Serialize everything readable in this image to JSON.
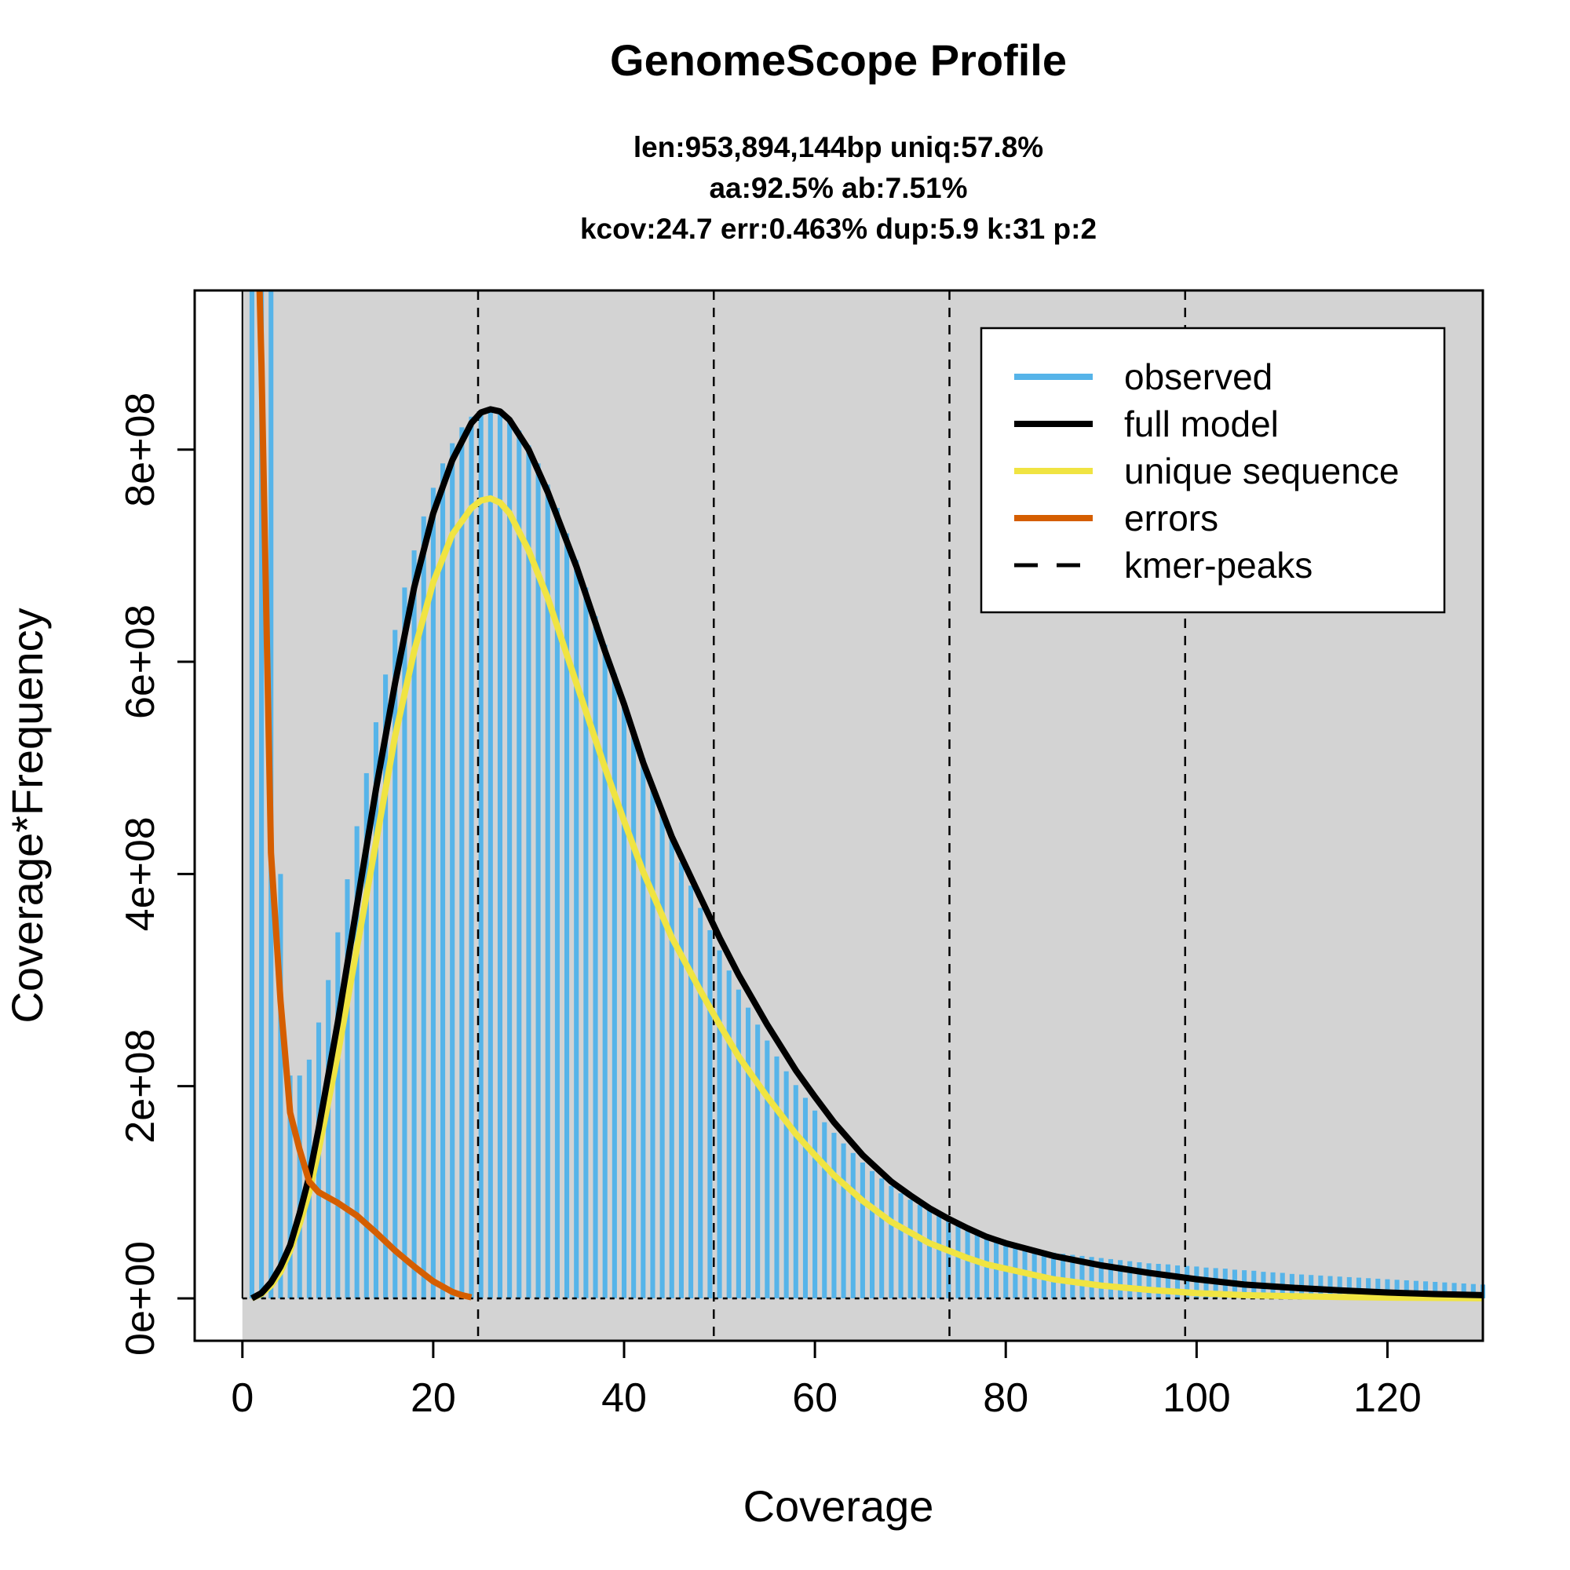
{
  "chart_data": {
    "type": "bar",
    "title": "GenomeScope Profile",
    "subtitle_lines": [
      "len:953,894,144bp uniq:57.8%",
      "aa:92.5% ab:7.51%",
      "kcov:24.7 err:0.463%  dup:5.9  k:31 p:2"
    ],
    "xlabel": "Coverage",
    "ylabel": "Coverage*Frequency",
    "xlim": [
      -5,
      130
    ],
    "ylim": [
      -40000000,
      950000000
    ],
    "x_ticks": [
      0,
      20,
      40,
      60,
      80,
      100,
      120
    ],
    "y_ticks": [
      0,
      200000000,
      400000000,
      600000000,
      800000000
    ],
    "y_tick_labels": [
      "0e+00",
      "2e+08",
      "4e+08",
      "6e+08",
      "8e+08"
    ],
    "kmer_peaks": [
      24.7,
      49.4,
      74.1,
      98.8
    ],
    "observed": [
      [
        1,
        950000000
      ],
      [
        2,
        950000000
      ],
      [
        3,
        950000000
      ],
      [
        4,
        400000000
      ],
      [
        5,
        210000000
      ],
      [
        6,
        210000000
      ],
      [
        7,
        225000000
      ],
      [
        8,
        260000000
      ],
      [
        9,
        300000000
      ],
      [
        10,
        345000000
      ],
      [
        11,
        395000000
      ],
      [
        12,
        445000000
      ],
      [
        13,
        495000000
      ],
      [
        14,
        543000000
      ],
      [
        15,
        588000000
      ],
      [
        16,
        630000000
      ],
      [
        17,
        670000000
      ],
      [
        18,
        705000000
      ],
      [
        19,
        737000000
      ],
      [
        20,
        764000000
      ],
      [
        21,
        787000000
      ],
      [
        22,
        806000000
      ],
      [
        23,
        821000000
      ],
      [
        24,
        831000000
      ],
      [
        25,
        836000000
      ],
      [
        26,
        838000000
      ],
      [
        27,
        835000000
      ],
      [
        28,
        828000000
      ],
      [
        29,
        818000000
      ],
      [
        30,
        804000000
      ],
      [
        31,
        787000000
      ],
      [
        32,
        767000000
      ],
      [
        33,
        745000000
      ],
      [
        34,
        721000000
      ],
      [
        35,
        696000000
      ],
      [
        36,
        670000000
      ],
      [
        37,
        643000000
      ],
      [
        38,
        616000000
      ],
      [
        39,
        589000000
      ],
      [
        40,
        562000000
      ],
      [
        41,
        535000000
      ],
      [
        42,
        509000000
      ],
      [
        43,
        483000000
      ],
      [
        44,
        458000000
      ],
      [
        45,
        434000000
      ],
      [
        46,
        411000000
      ],
      [
        47,
        389000000
      ],
      [
        48,
        368000000
      ],
      [
        49,
        347000000
      ],
      [
        50,
        328000000
      ],
      [
        51,
        309000000
      ],
      [
        52,
        291000000
      ],
      [
        53,
        274000000
      ],
      [
        54,
        258000000
      ],
      [
        55,
        243000000
      ],
      [
        56,
        228000000
      ],
      [
        57,
        214000000
      ],
      [
        58,
        201000000
      ],
      [
        59,
        189000000
      ],
      [
        60,
        177000000
      ],
      [
        61,
        166000000
      ],
      [
        62,
        156000000
      ],
      [
        63,
        146000000
      ],
      [
        64,
        137000000
      ],
      [
        65,
        128000000
      ],
      [
        66,
        120000000
      ],
      [
        67,
        113000000
      ],
      [
        68,
        106000000
      ],
      [
        69,
        99000000
      ],
      [
        70,
        93000000
      ],
      [
        71,
        88000000
      ],
      [
        72,
        83000000
      ],
      [
        73,
        78000000
      ],
      [
        74,
        73000000
      ],
      [
        75,
        69000000
      ],
      [
        76,
        65000000
      ],
      [
        77,
        62000000
      ],
      [
        78,
        59000000
      ],
      [
        79,
        56000000
      ],
      [
        80,
        53000000
      ],
      [
        81,
        51000000
      ],
      [
        82,
        49000000
      ],
      [
        83,
        47000000
      ],
      [
        84,
        45000000
      ],
      [
        85,
        43000000
      ],
      [
        86,
        42000000
      ],
      [
        87,
        41000000
      ],
      [
        88,
        40000000
      ],
      [
        89,
        39000000
      ],
      [
        90,
        38000000
      ],
      [
        91,
        37000000
      ],
      [
        92,
        36000000
      ],
      [
        93,
        35000000
      ],
      [
        94,
        34000000
      ],
      [
        95,
        33000000
      ],
      [
        96,
        32500000
      ],
      [
        97,
        32000000
      ],
      [
        98,
        31000000
      ],
      [
        99,
        30500000
      ],
      [
        100,
        30000000
      ],
      [
        101,
        29000000
      ],
      [
        102,
        28500000
      ],
      [
        103,
        28000000
      ],
      [
        104,
        27000000
      ],
      [
        105,
        26500000
      ],
      [
        106,
        26000000
      ],
      [
        107,
        25000000
      ],
      [
        108,
        24500000
      ],
      [
        109,
        24000000
      ],
      [
        110,
        23000000
      ],
      [
        111,
        22500000
      ],
      [
        112,
        22000000
      ],
      [
        113,
        21500000
      ],
      [
        114,
        21000000
      ],
      [
        115,
        20500000
      ],
      [
        116,
        20000000
      ],
      [
        117,
        19500000
      ],
      [
        118,
        19000000
      ],
      [
        119,
        18500000
      ],
      [
        120,
        18000000
      ],
      [
        121,
        17500000
      ],
      [
        122,
        17000000
      ],
      [
        123,
        16500000
      ],
      [
        124,
        16000000
      ],
      [
        125,
        15500000
      ],
      [
        126,
        15000000
      ],
      [
        127,
        14500000
      ],
      [
        128,
        14000000
      ],
      [
        129,
        13500000
      ],
      [
        130,
        13000000
      ]
    ],
    "full_model": [
      [
        1,
        0
      ],
      [
        2,
        5000000
      ],
      [
        3,
        15000000
      ],
      [
        4,
        30000000
      ],
      [
        5,
        50000000
      ],
      [
        6,
        80000000
      ],
      [
        7,
        115000000
      ],
      [
        8,
        160000000
      ],
      [
        10,
        260000000
      ],
      [
        12,
        370000000
      ],
      [
        14,
        480000000
      ],
      [
        16,
        580000000
      ],
      [
        18,
        670000000
      ],
      [
        20,
        740000000
      ],
      [
        22,
        790000000
      ],
      [
        24,
        825000000
      ],
      [
        25,
        835000000
      ],
      [
        26,
        838000000
      ],
      [
        27,
        836000000
      ],
      [
        28,
        828000000
      ],
      [
        30,
        800000000
      ],
      [
        32,
        760000000
      ],
      [
        35,
        690000000
      ],
      [
        38,
        610000000
      ],
      [
        40,
        560000000
      ],
      [
        42,
        505000000
      ],
      [
        45,
        435000000
      ],
      [
        48,
        378000000
      ],
      [
        50,
        340000000
      ],
      [
        52,
        305000000
      ],
      [
        55,
        258000000
      ],
      [
        58,
        215000000
      ],
      [
        60,
        190000000
      ],
      [
        62,
        166000000
      ],
      [
        65,
        135000000
      ],
      [
        68,
        110000000
      ],
      [
        70,
        97000000
      ],
      [
        72,
        85000000
      ],
      [
        74,
        75000000
      ],
      [
        76,
        66000000
      ],
      [
        78,
        58000000
      ],
      [
        80,
        52000000
      ],
      [
        85,
        40000000
      ],
      [
        90,
        31000000
      ],
      [
        95,
        24000000
      ],
      [
        100,
        18000000
      ],
      [
        105,
        13000000
      ],
      [
        110,
        10000000
      ],
      [
        115,
        7500000
      ],
      [
        120,
        5500000
      ],
      [
        125,
        4000000
      ],
      [
        130,
        3000000
      ]
    ],
    "unique_sequence": [
      [
        1,
        0
      ],
      [
        2,
        4000000
      ],
      [
        3,
        12000000
      ],
      [
        4,
        25000000
      ],
      [
        5,
        45000000
      ],
      [
        6,
        70000000
      ],
      [
        7,
        100000000
      ],
      [
        8,
        140000000
      ],
      [
        10,
        230000000
      ],
      [
        12,
        330000000
      ],
      [
        14,
        430000000
      ],
      [
        16,
        530000000
      ],
      [
        18,
        610000000
      ],
      [
        20,
        675000000
      ],
      [
        22,
        720000000
      ],
      [
        24,
        745000000
      ],
      [
        25,
        752000000
      ],
      [
        26,
        754000000
      ],
      [
        27,
        750000000
      ],
      [
        28,
        740000000
      ],
      [
        30,
        705000000
      ],
      [
        32,
        660000000
      ],
      [
        35,
        580000000
      ],
      [
        38,
        500000000
      ],
      [
        40,
        450000000
      ],
      [
        42,
        402000000
      ],
      [
        45,
        340000000
      ],
      [
        48,
        290000000
      ],
      [
        50,
        258000000
      ],
      [
        52,
        228000000
      ],
      [
        55,
        190000000
      ],
      [
        58,
        155000000
      ],
      [
        60,
        135000000
      ],
      [
        62,
        116000000
      ],
      [
        65,
        92000000
      ],
      [
        68,
        72000000
      ],
      [
        70,
        62000000
      ],
      [
        72,
        52000000
      ],
      [
        74,
        45000000
      ],
      [
        76,
        38000000
      ],
      [
        78,
        32000000
      ],
      [
        80,
        28000000
      ],
      [
        85,
        18000000
      ],
      [
        90,
        12000000
      ],
      [
        95,
        8000000
      ],
      [
        100,
        5000000
      ],
      [
        105,
        3000000
      ],
      [
        110,
        2000000
      ],
      [
        115,
        1200000
      ],
      [
        120,
        700000
      ],
      [
        125,
        400000
      ],
      [
        130,
        200000
      ]
    ],
    "errors": [
      [
        1.8,
        950000000
      ],
      [
        2,
        880000000
      ],
      [
        3,
        420000000
      ],
      [
        4,
        280000000
      ],
      [
        5,
        175000000
      ],
      [
        6,
        140000000
      ],
      [
        7,
        110000000
      ],
      [
        8,
        100000000
      ],
      [
        10,
        90000000
      ],
      [
        12,
        78000000
      ],
      [
        14,
        62000000
      ],
      [
        16,
        45000000
      ],
      [
        18,
        30000000
      ],
      [
        20,
        16000000
      ],
      [
        22,
        6000000
      ],
      [
        23,
        3000000
      ],
      [
        24,
        1000000
      ]
    ],
    "colors": {
      "background": "#d3d3d3",
      "observed": "#56b4e9",
      "full_model": "#000000",
      "unique_sequence": "#f0e442",
      "errors": "#d55e00"
    },
    "legend": {
      "position": "top-right",
      "entries": [
        {
          "label": "observed",
          "color": "#56b4e9",
          "style": "solid"
        },
        {
          "label": "full model",
          "color": "#000000",
          "style": "solid"
        },
        {
          "label": "unique sequence",
          "color": "#f0e442",
          "style": "solid"
        },
        {
          "label": "errors",
          "color": "#d55e00",
          "style": "solid"
        },
        {
          "label": "kmer-peaks",
          "color": "#000000",
          "style": "dashed"
        }
      ]
    }
  }
}
